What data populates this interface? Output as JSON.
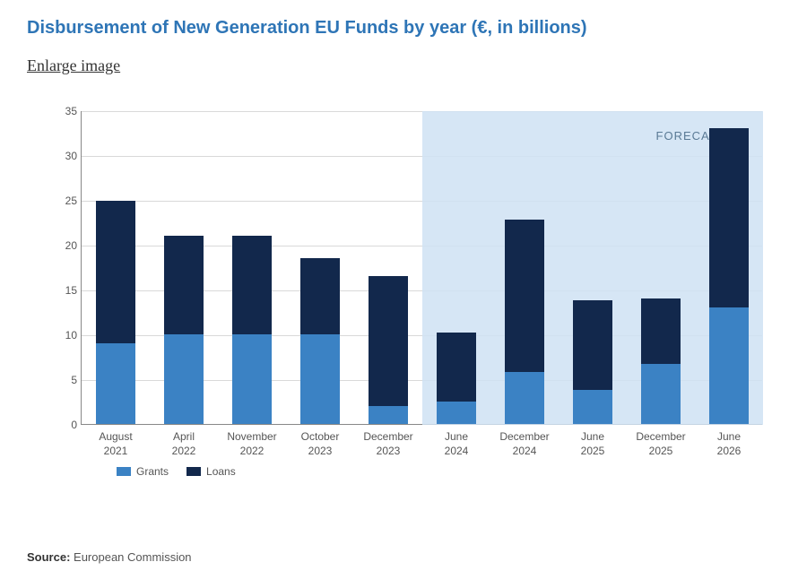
{
  "title": "Disbursement of New Generation EU Funds by year (€, in billions)",
  "enlarge_label": "Enlarge image",
  "chart": {
    "type": "stacked-bar",
    "y_axis": {
      "min": 0,
      "max": 35,
      "step": 5
    },
    "colors": {
      "grants": "#3b82c4",
      "loans": "#12284c",
      "forecast_band": "#cfe2f3",
      "grid": "#d9d9d9",
      "axis": "#888888",
      "text": "#555555",
      "background": "#ffffff"
    },
    "forecast_label": "FORECASTS",
    "legend": [
      {
        "key": "grants",
        "label": "Grants"
      },
      {
        "key": "loans",
        "label": "Loans"
      }
    ],
    "categories": [
      {
        "line1": "August",
        "line2": "2021",
        "grants": 9.0,
        "loans": 15.9,
        "forecast": false
      },
      {
        "line1": "April",
        "line2": "2022",
        "grants": 10.0,
        "loans": 11.0,
        "forecast": false
      },
      {
        "line1": "November",
        "line2": "2022",
        "grants": 10.0,
        "loans": 11.0,
        "forecast": false
      },
      {
        "line1": "October",
        "line2": "2023",
        "grants": 10.0,
        "loans": 8.5,
        "forecast": false
      },
      {
        "line1": "December",
        "line2": "2023",
        "grants": 2.0,
        "loans": 14.5,
        "forecast": false
      },
      {
        "line1": "June",
        "line2": "2024",
        "grants": 2.5,
        "loans": 7.7,
        "forecast": true
      },
      {
        "line1": "December",
        "line2": "2024",
        "grants": 5.8,
        "loans": 17.0,
        "forecast": true
      },
      {
        "line1": "June",
        "line2": "2025",
        "grants": 3.8,
        "loans": 10.0,
        "forecast": true
      },
      {
        "line1": "December",
        "line2": "2025",
        "grants": 6.7,
        "loans": 7.3,
        "forecast": true
      },
      {
        "line1": "June",
        "line2": "2026",
        "grants": 13.0,
        "loans": 20.0,
        "forecast": true
      }
    ]
  },
  "source_prefix": "Source:",
  "source_text": "European Commission"
}
